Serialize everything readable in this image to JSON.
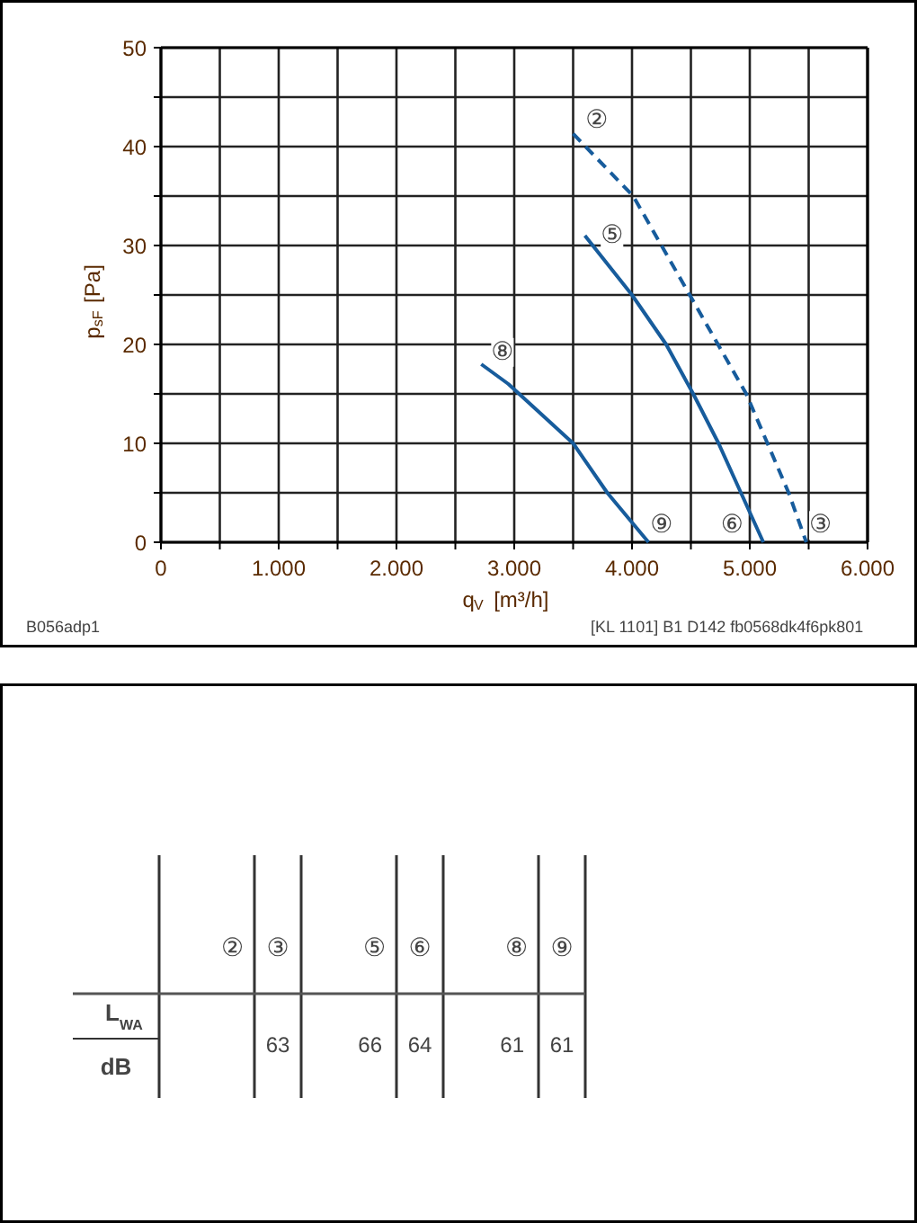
{
  "chart_data": [
    {
      "type": "line",
      "xlabel": "q$_{V}$ [m³/h]",
      "ylabel": "p$_{sF}$ [Pa]",
      "xlim": [
        0,
        6000
      ],
      "ylim": [
        0,
        50
      ],
      "xticks": [
        0,
        {
          "value": 500,
          "label": null
        },
        {
          "value": 1000,
          "label": "1.000"
        },
        {
          "value": 1500,
          "label": null
        },
        {
          "value": 2000,
          "label": "2.000"
        },
        {
          "value": 2500,
          "label": null
        },
        {
          "value": 3000,
          "label": "3.000"
        },
        {
          "value": 3500,
          "label": null
        },
        {
          "value": 4000,
          "label": "4.000"
        },
        {
          "value": 4500,
          "label": null
        },
        {
          "value": 5000,
          "label": "5.000"
        },
        {
          "value": 5500,
          "label": null
        },
        {
          "value": 6000,
          "label": "6.000"
        }
      ],
      "yticks": [
        0,
        {
          "value": 5,
          "label": null
        },
        10,
        {
          "value": 15,
          "label": null
        },
        20,
        {
          "value": 25,
          "label": null
        },
        30,
        {
          "value": 35,
          "label": null
        },
        40,
        {
          "value": 45,
          "label": null
        },
        50
      ],
      "grid": true,
      "series": [
        {
          "color": "#175c9c",
          "line_style": "dashed",
          "x": [
            3500,
            4010,
            4490,
            4970,
            5330,
            5480
          ],
          "values": [
            41.3,
            35,
            25,
            15,
            5,
            0
          ]
        },
        {
          "color": "#175c9c",
          "line_style": "solid",
          "x": [
            3600,
            4000,
            4290,
            4520,
            4735,
            4925,
            5115
          ],
          "values": [
            31,
            25,
            20,
            15,
            10,
            5,
            0
          ]
        },
        {
          "color": "#175c9c",
          "line_style": "solid",
          "x": [
            2720,
            2950,
            3500,
            3790,
            4140
          ],
          "values": [
            18,
            16,
            10,
            5,
            0
          ]
        }
      ],
      "annotations": [
        {
          "text": "②",
          "x": 3700,
          "y": 42.6
        },
        {
          "text": "⑤",
          "x": 3830,
          "y": 31
        },
        {
          "text": "⑧",
          "x": 2900,
          "y": 19.2
        },
        {
          "text": "⑨",
          "x": 4250,
          "y": 1.7
        },
        {
          "text": "⑥",
          "x": 4850,
          "y": 1.7
        },
        {
          "text": "③",
          "x": 5600,
          "y": 1.7
        },
        "B056adp1",
        "[KL 1101] B1 D142 fb0568dk4f6pk801"
      ]
    },
    {
      "type": "other",
      "categories": [
        "②",
        "③",
        "⑤",
        "⑥",
        "⑧",
        "⑨"
      ],
      "values": [
        null,
        63,
        66,
        64,
        61,
        61
      ],
      "data_labels": true,
      "ylabel": "L$_{WA}$",
      "annotations": [
        "dB"
      ]
    }
  ]
}
